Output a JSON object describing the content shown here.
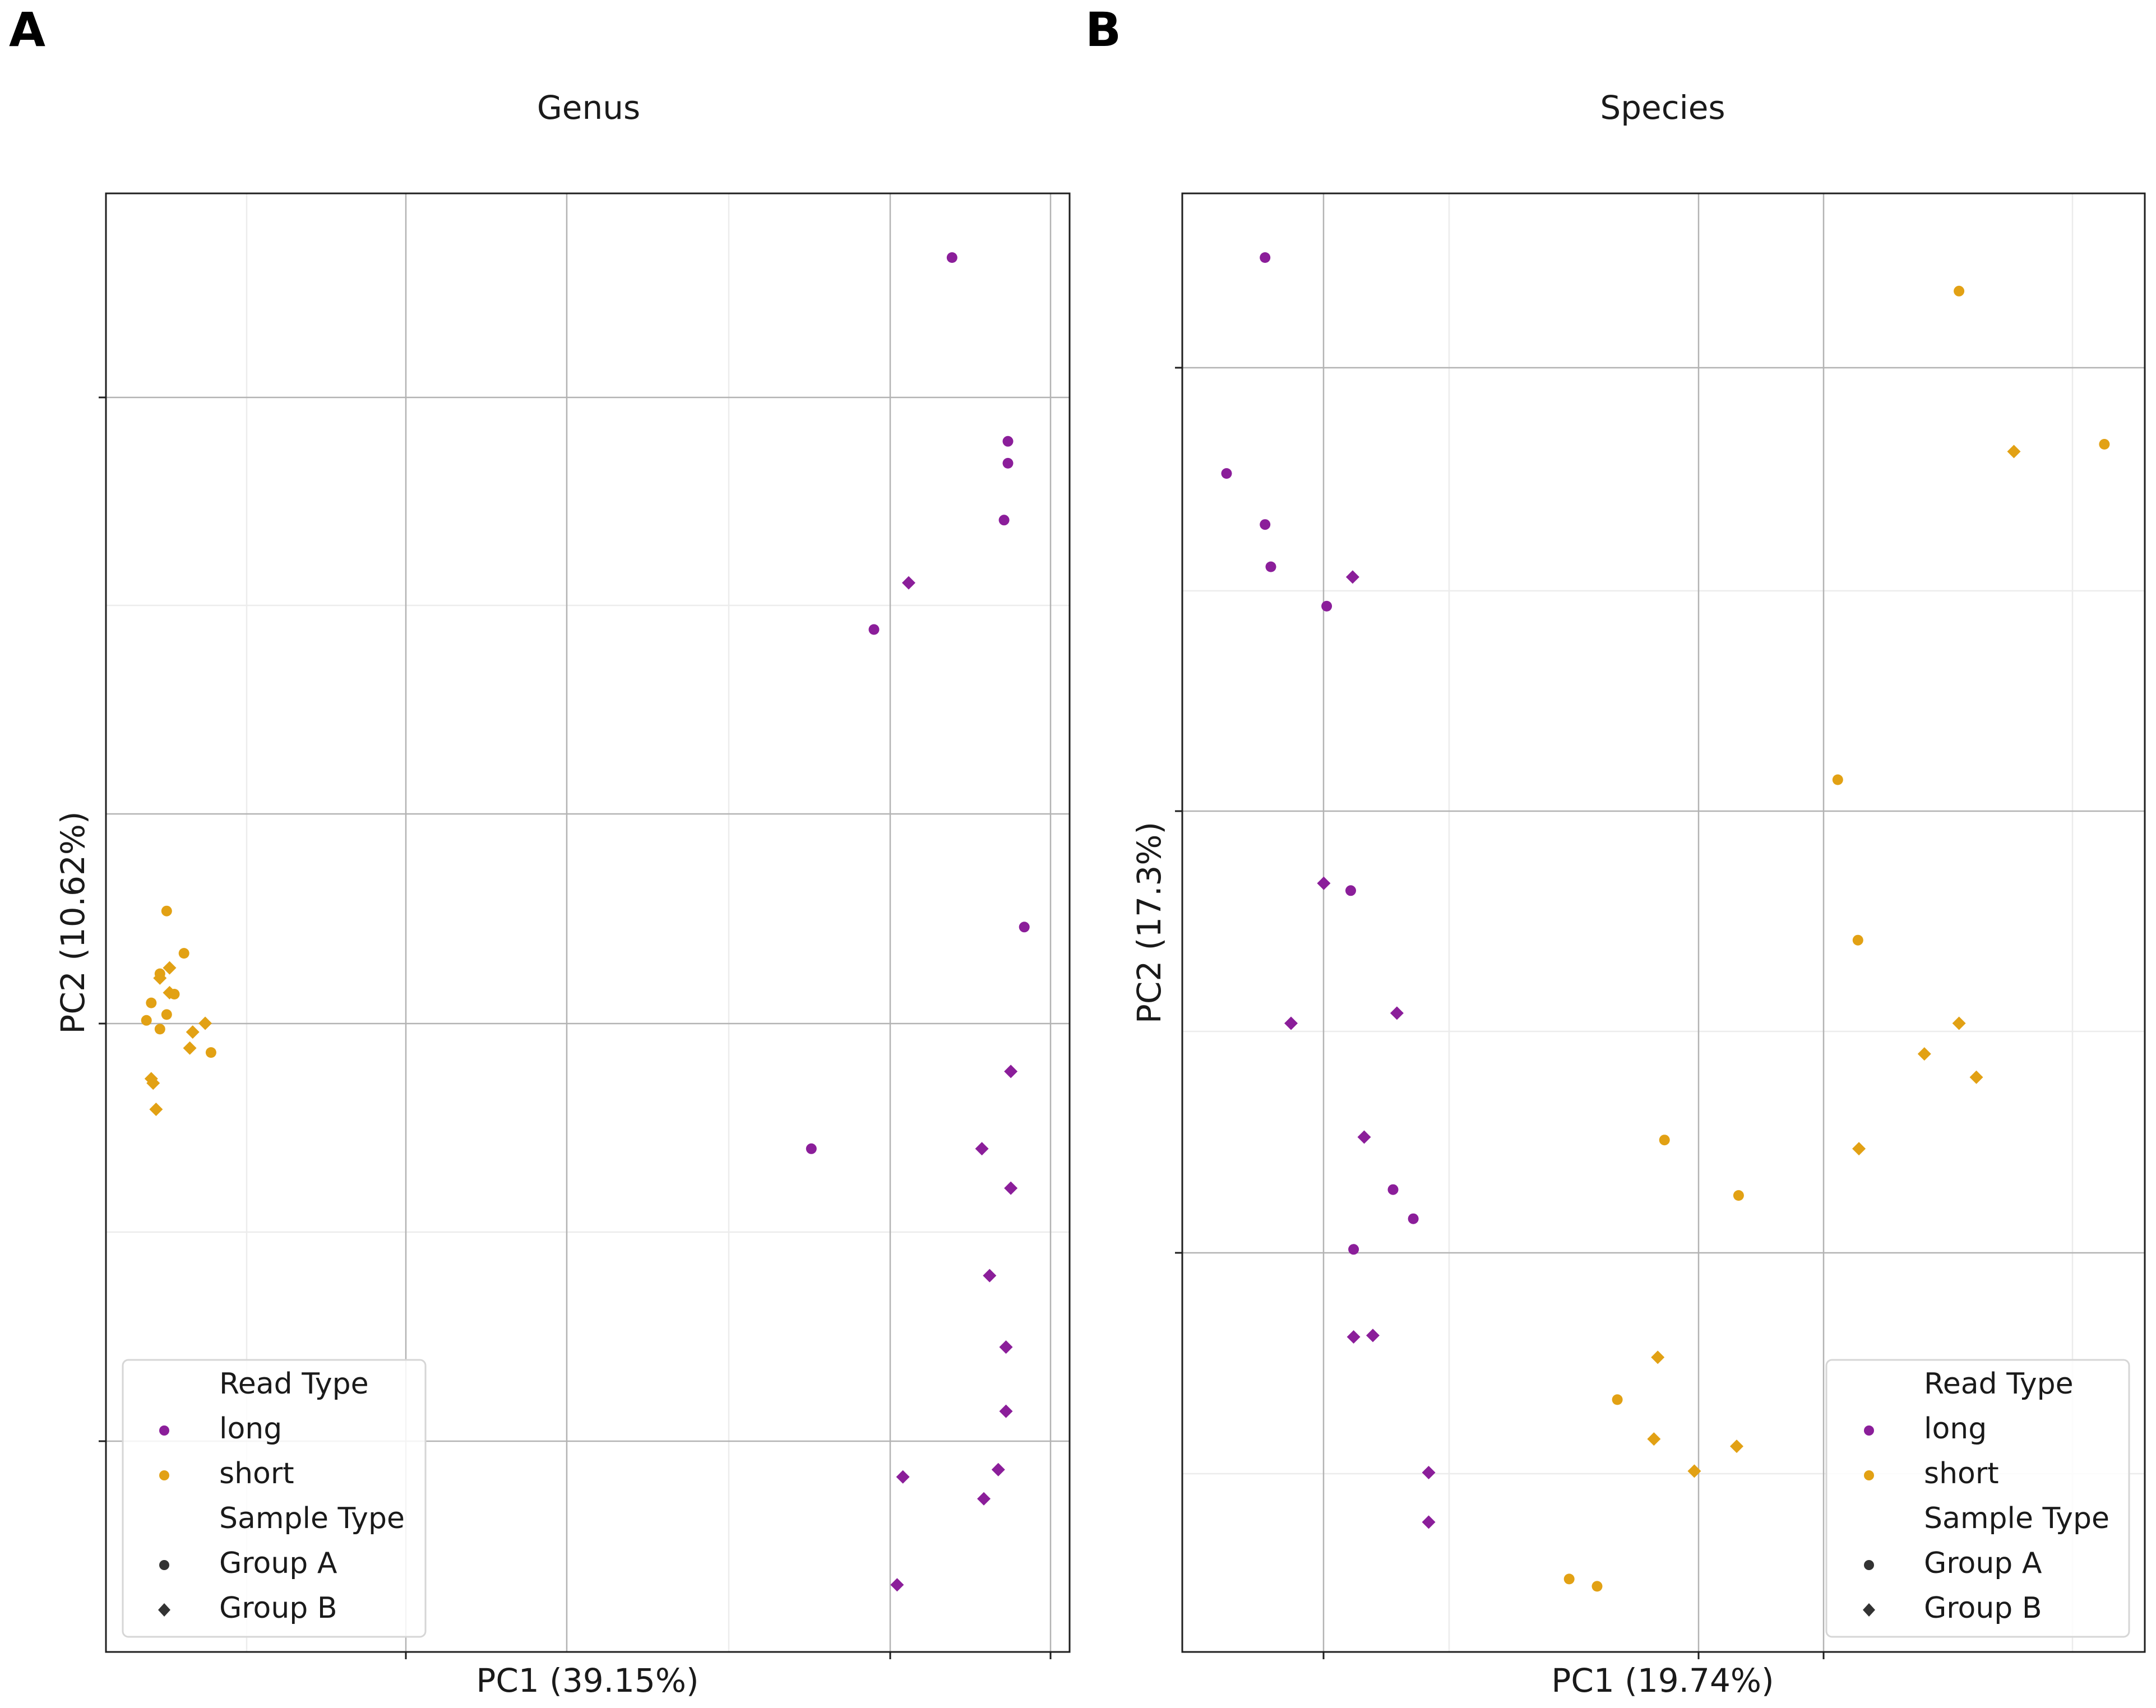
{
  "colors": {
    "long": "#8B1E9A",
    "short": "#E2A114"
  },
  "chart_data": [
    {
      "panel_label": "A",
      "type": "scatter",
      "title": "Genus",
      "xlabel": "PC1 (39.15%)",
      "ylabel": "PC2 (10.62%)",
      "xlim": [
        0,
        1
      ],
      "ylim": [
        0,
        1
      ],
      "grid": true,
      "legend": {
        "placement": "bottom-left",
        "hue_title": "Read Type",
        "hue_items": [
          {
            "label": "long",
            "key": "long"
          },
          {
            "label": "short",
            "key": "short"
          }
        ],
        "style_title": "Sample Type",
        "style_items": [
          {
            "label": "Group A",
            "marker": "circle"
          },
          {
            "label": "Group B",
            "marker": "diamond"
          }
        ]
      },
      "series": [
        {
          "name": "long · Group A",
          "read_type": "long",
          "sample_type": "Group A",
          "marker": "circle",
          "points": [
            [
              0.878,
              0.956
            ],
            [
              0.936,
              0.83
            ],
            [
              0.936,
              0.815
            ],
            [
              0.932,
              0.776
            ],
            [
              0.797,
              0.701
            ],
            [
              0.732,
              0.345
            ],
            [
              0.953,
              0.497
            ]
          ]
        },
        {
          "name": "long · Group B",
          "read_type": "long",
          "sample_type": "Group B",
          "marker": "diamond",
          "points": [
            [
              0.833,
              0.733
            ],
            [
              0.939,
              0.398
            ],
            [
              0.909,
              0.345
            ],
            [
              0.939,
              0.318
            ],
            [
              0.917,
              0.258
            ],
            [
              0.934,
              0.209
            ],
            [
              0.934,
              0.165
            ],
            [
              0.827,
              0.12
            ],
            [
              0.926,
              0.125
            ],
            [
              0.911,
              0.105
            ],
            [
              0.821,
              0.046
            ]
          ]
        },
        {
          "name": "short · Group A",
          "read_type": "short",
          "sample_type": "Group A",
          "marker": "circle",
          "points": [
            [
              0.063,
              0.508
            ],
            [
              0.081,
              0.479
            ],
            [
              0.056,
              0.465
            ],
            [
              0.071,
              0.451
            ],
            [
              0.047,
              0.445
            ],
            [
              0.063,
              0.437
            ],
            [
              0.042,
              0.433
            ],
            [
              0.056,
              0.427
            ],
            [
              0.109,
              0.411
            ]
          ]
        },
        {
          "name": "short · Group B",
          "read_type": "short",
          "sample_type": "Group B",
          "marker": "diamond",
          "points": [
            [
              0.066,
              0.469
            ],
            [
              0.056,
              0.462
            ],
            [
              0.066,
              0.452
            ],
            [
              0.103,
              0.431
            ],
            [
              0.09,
              0.425
            ],
            [
              0.087,
              0.414
            ],
            [
              0.047,
              0.393
            ],
            [
              0.049,
              0.39
            ],
            [
              0.052,
              0.372
            ]
          ]
        }
      ]
    },
    {
      "panel_label": "B",
      "type": "scatter",
      "title": "Species",
      "xlabel": "PC1 (19.74%)",
      "ylabel": "PC2 (17.3%)",
      "xlim": [
        0,
        1
      ],
      "ylim": [
        0,
        1
      ],
      "grid": true,
      "legend": {
        "placement": "bottom-right",
        "hue_title": "Read Type",
        "hue_items": [
          {
            "label": "long",
            "key": "long"
          },
          {
            "label": "short",
            "key": "short"
          }
        ],
        "style_title": "Sample Type",
        "style_items": [
          {
            "label": "Group A",
            "marker": "circle"
          },
          {
            "label": "Group B",
            "marker": "diamond"
          }
        ]
      },
      "series": [
        {
          "name": "long · Group A",
          "read_type": "long",
          "sample_type": "Group A",
          "marker": "circle",
          "points": [
            [
              0.086,
              0.956
            ],
            [
              0.046,
              0.808
            ],
            [
              0.086,
              0.773
            ],
            [
              0.092,
              0.744
            ],
            [
              0.15,
              0.717
            ],
            [
              0.175,
              0.522
            ],
            [
              0.219,
              0.317
            ],
            [
              0.24,
              0.297
            ],
            [
              0.178,
              0.276
            ]
          ]
        },
        {
          "name": "long · Group B",
          "read_type": "long",
          "sample_type": "Group B",
          "marker": "diamond",
          "points": [
            [
              0.177,
              0.737
            ],
            [
              0.147,
              0.527
            ],
            [
              0.113,
              0.431
            ],
            [
              0.223,
              0.438
            ],
            [
              0.189,
              0.353
            ],
            [
              0.178,
              0.216
            ],
            [
              0.198,
              0.217
            ],
            [
              0.256,
              0.123
            ],
            [
              0.256,
              0.089
            ]
          ]
        },
        {
          "name": "short · Group A",
          "read_type": "short",
          "sample_type": "Group A",
          "marker": "circle",
          "points": [
            [
              0.807,
              0.933
            ],
            [
              0.958,
              0.828
            ],
            [
              0.681,
              0.598
            ],
            [
              0.702,
              0.488
            ],
            [
              0.501,
              0.351
            ],
            [
              0.578,
              0.313
            ],
            [
              0.452,
              0.173
            ],
            [
              0.402,
              0.05
            ],
            [
              0.431,
              0.045
            ]
          ]
        },
        {
          "name": "short · Group B",
          "read_type": "short",
          "sample_type": "Group B",
          "marker": "diamond",
          "points": [
            [
              0.864,
              0.823
            ],
            [
              0.807,
              0.431
            ],
            [
              0.771,
              0.41
            ],
            [
              0.825,
              0.394
            ],
            [
              0.703,
              0.345
            ],
            [
              0.494,
              0.202
            ],
            [
              0.49,
              0.146
            ],
            [
              0.576,
              0.141
            ],
            [
              0.532,
              0.124
            ]
          ]
        }
      ]
    }
  ]
}
